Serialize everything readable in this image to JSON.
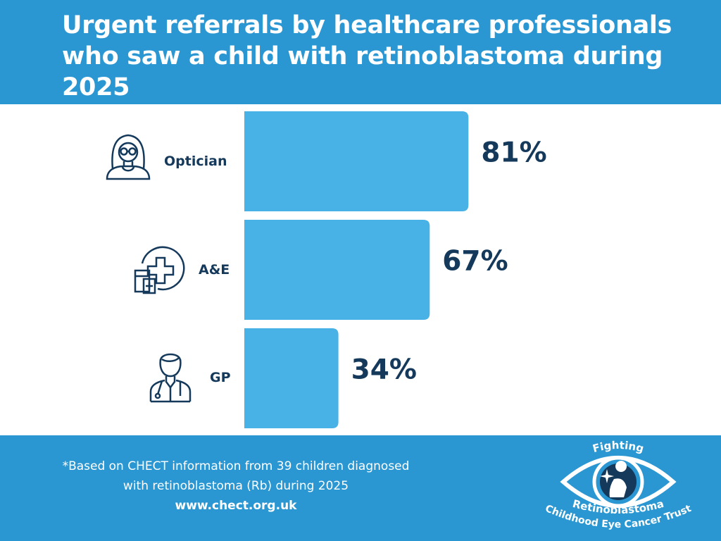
{
  "title": "Urgent referrals by healthcare professionals who saw a child with retinoblastoma during 2025",
  "chart_data": {
    "type": "bar",
    "orientation": "horizontal",
    "categories": [
      "Optician",
      "A&E",
      "GP"
    ],
    "values": [
      81,
      67,
      34
    ],
    "value_labels": [
      "81%",
      "67%",
      "34%"
    ],
    "unit": "%",
    "xlim": [
      0,
      100
    ],
    "colors": {
      "bar": "#48b1e6",
      "text": "#14395b",
      "band": "#2a97d2"
    }
  },
  "icons": [
    "optician-icon",
    "hospital-icon",
    "doctor-icon"
  ],
  "footer": {
    "note_line1": "*Based on CHECT information from 39 children diagnosed",
    "note_line2": "with retinoblastoma (Rb) during 2025",
    "url": "www.chect.org.uk"
  },
  "logo": {
    "top_text": "Fighting",
    "middle_text": "Retinoblastoma",
    "bottom_text": "Childhood Eye Cancer Trust"
  }
}
